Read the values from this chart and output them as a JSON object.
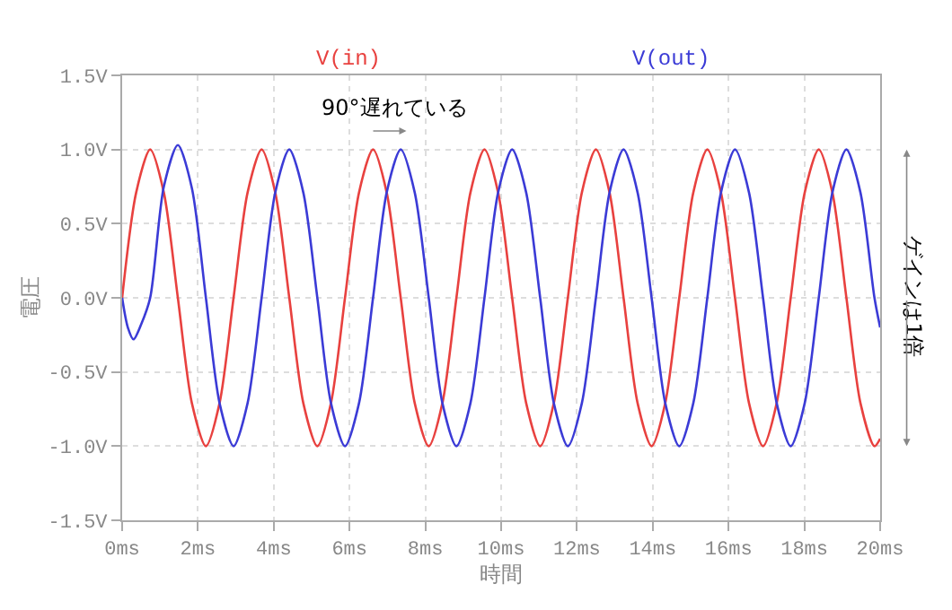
{
  "chart_data": {
    "type": "line",
    "xlabel": "時間",
    "ylabel": "電圧",
    "x": [
      0,
      0.37,
      0.74,
      1.1,
      1.47,
      1.84,
      2.21,
      2.57,
      2.94,
      3.31,
      3.68,
      4.04,
      4.41,
      4.78,
      5.15,
      5.51,
      5.88,
      6.25,
      6.62,
      6.98,
      7.35,
      7.72,
      8.09,
      8.45,
      8.82,
      9.19,
      9.56,
      9.92,
      10.29,
      10.66,
      11.03,
      11.39,
      11.76,
      12.13,
      12.5,
      12.86,
      13.23,
      13.6,
      13.97,
      14.33,
      14.7,
      15.07,
      15.44,
      15.8,
      16.17,
      16.54,
      16.91,
      17.27,
      17.64,
      18.01,
      18.38,
      18.74,
      19.11,
      19.48,
      19.85,
      20
    ],
    "series": [
      {
        "name": "V(in)",
        "color": "#e8413f",
        "values": [
          0,
          0.71,
          1,
          0.71,
          0,
          -0.71,
          -1,
          -0.71,
          0,
          0.71,
          1,
          0.71,
          0,
          -0.71,
          -1,
          -0.71,
          0,
          0.71,
          1,
          0.71,
          0,
          -0.71,
          -1,
          -0.71,
          0,
          0.71,
          1,
          0.71,
          0,
          -0.71,
          -1,
          -0.71,
          0,
          0.71,
          1,
          0.71,
          0,
          -0.71,
          -1,
          -0.71,
          0,
          0.71,
          1,
          0.71,
          0,
          -0.71,
          -1,
          -0.71,
          0,
          0.71,
          1,
          0.71,
          0,
          -0.71,
          -1,
          -0.95
        ]
      },
      {
        "name": "V(out)",
        "color": "#3b3bd6",
        "x": [
          0,
          0.15,
          0.3,
          0.5,
          0.74,
          1.1,
          1.47,
          1.84,
          2.21,
          2.57,
          2.94,
          3.31,
          3.68,
          4.04,
          4.41,
          4.78,
          5.15,
          5.51,
          5.88,
          6.25,
          6.62,
          6.98,
          7.35,
          7.72,
          8.09,
          8.45,
          8.82,
          9.19,
          9.56,
          9.92,
          10.29,
          10.66,
          11.03,
          11.39,
          11.76,
          12.13,
          12.5,
          12.86,
          13.23,
          13.6,
          13.97,
          14.33,
          14.7,
          15.07,
          15.44,
          15.8,
          16.17,
          16.54,
          16.91,
          17.27,
          17.64,
          18.01,
          18.38,
          18.74,
          19.11,
          19.48,
          19.85,
          20
        ],
        "values": [
          0,
          -0.2,
          -0.28,
          -0.18,
          0,
          0.75,
          1.03,
          0.74,
          0,
          -0.71,
          -1,
          -0.71,
          0,
          0.71,
          1,
          0.71,
          0,
          -0.71,
          -1,
          -0.71,
          0,
          0.71,
          1,
          0.71,
          0,
          -0.71,
          -1,
          -0.71,
          0,
          0.71,
          1,
          0.71,
          0,
          -0.71,
          -1,
          -0.71,
          0,
          0.71,
          1,
          0.71,
          0,
          -0.71,
          -1,
          -0.71,
          0,
          0.71,
          1,
          0.71,
          0,
          -0.71,
          -1,
          -0.71,
          0,
          0.71,
          1,
          0.71,
          0,
          -0.2
        ]
      }
    ],
    "xlim": [
      0,
      20
    ],
    "xticks": [
      {
        "value": 0,
        "label": "0ms"
      },
      {
        "value": 2,
        "label": "2ms"
      },
      {
        "value": 4,
        "label": "4ms"
      },
      {
        "value": 6,
        "label": "6ms"
      },
      {
        "value": 8,
        "label": "8ms"
      },
      {
        "value": 10,
        "label": "10ms"
      },
      {
        "value": 12,
        "label": "12ms"
      },
      {
        "value": 14,
        "label": "14ms"
      },
      {
        "value": 16,
        "label": "16ms"
      },
      {
        "value": 18,
        "label": "18ms"
      },
      {
        "value": 20,
        "label": "20ms"
      }
    ],
    "ylim": [
      -1.5,
      1.5
    ],
    "yticks": [
      {
        "value": -1.5,
        "label": "-1.5V"
      },
      {
        "value": -1,
        "label": "-1.0V"
      },
      {
        "value": -0.5,
        "label": "-0.5V"
      },
      {
        "value": 0,
        "label": "0.0V"
      },
      {
        "value": 0.5,
        "label": "0.5V"
      },
      {
        "value": 1,
        "label": "1.0V"
      },
      {
        "value": 1.5,
        "label": "1.5V"
      }
    ],
    "annotations": [
      "90°遅れている",
      "ゲインは1倍"
    ],
    "grid": true,
    "legend": false,
    "marker": "none",
    "line_style": "solid"
  }
}
